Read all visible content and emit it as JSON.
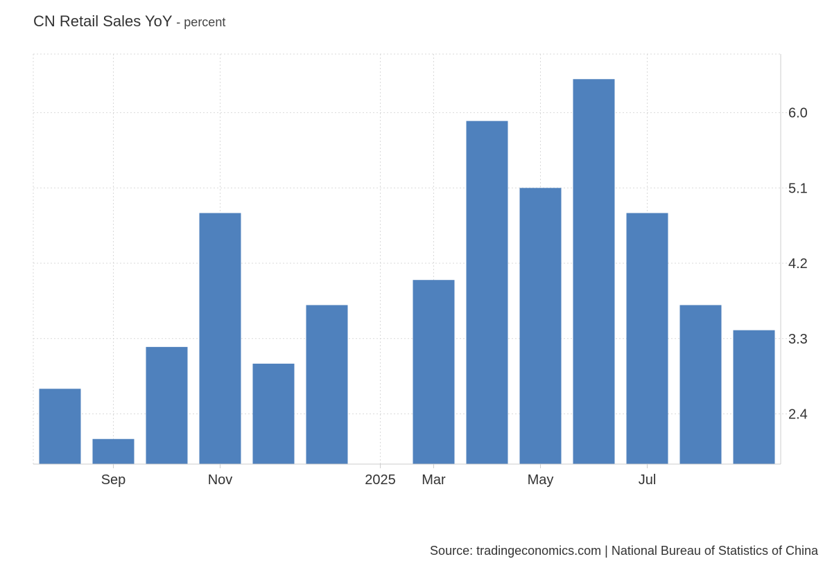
{
  "title": "CN Retail Sales YoY",
  "unit": "- percent",
  "source": "Source: tradingeconomics.com | National Bureau of Statistics of China",
  "colors": {
    "bar": "#4f81bd",
    "grid": "#d9d9d9",
    "axis": "#cccccc"
  },
  "chart_data": {
    "type": "bar",
    "categories": [
      "2024-07",
      "2024-08",
      "2024-09",
      "2024-10",
      "2024-11",
      "2024-12",
      "2025-01",
      "2025-02",
      "2025-03",
      "2025-04",
      "2025-05",
      "2025-06",
      "2025-07",
      "2025-08"
    ],
    "values": [
      2.7,
      2.1,
      3.2,
      4.8,
      3.0,
      3.7,
      null,
      4.0,
      5.9,
      5.1,
      6.4,
      4.8,
      3.7,
      3.4
    ],
    "x_tick_labels": [
      {
        "category": "2024-08",
        "label": "Sep"
      },
      {
        "category": "2024-10",
        "label": "Nov"
      },
      {
        "category": "2025-01",
        "label": "2025"
      },
      {
        "category": "2025-02",
        "label": "Mar"
      },
      {
        "category": "2025-04",
        "label": "May"
      },
      {
        "category": "2025-06",
        "label": "Jul"
      }
    ],
    "y_ticks": [
      2.4,
      3.3,
      4.2,
      5.1,
      6.0
    ],
    "ylim": [
      1.8,
      6.7
    ],
    "xlabel": "",
    "ylabel": "",
    "grid": true,
    "y_axis_side": "right"
  }
}
